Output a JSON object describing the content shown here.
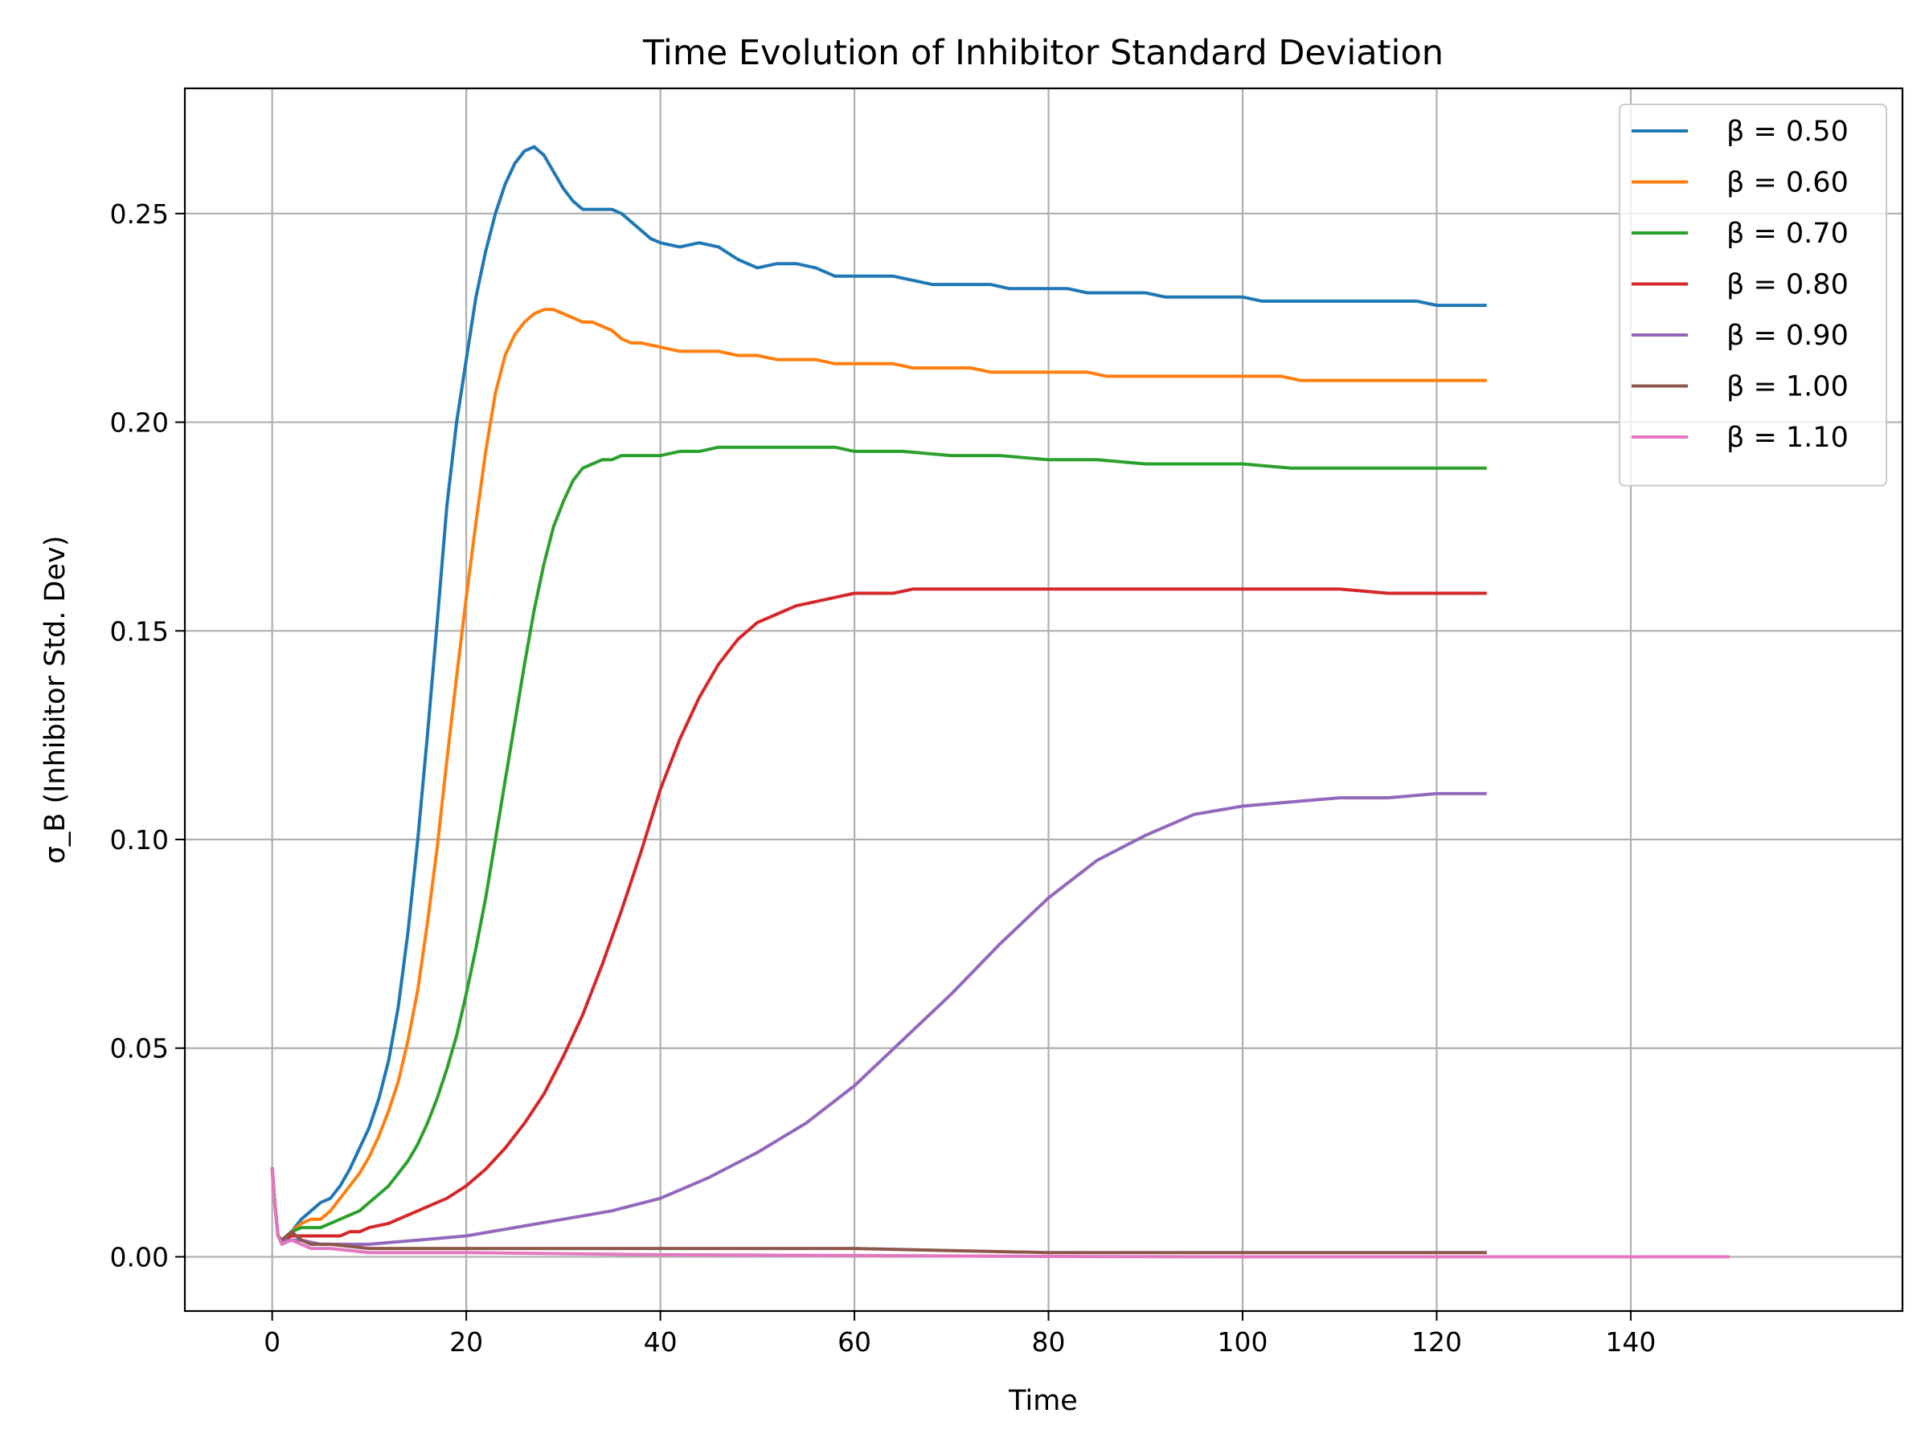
{
  "chart_data": {
    "type": "line",
    "title": "Time Evolution of Inhibitor Standard Deviation",
    "xlabel": "Time",
    "ylabel": "σ_B (Inhibitor Std. Dev)",
    "xlim": [
      -9,
      168
    ],
    "ylim": [
      -0.013,
      0.28
    ],
    "xticks": [
      0,
      20,
      40,
      60,
      80,
      100,
      120,
      140
    ],
    "xtick_labels": [
      "0",
      "20",
      "40",
      "60",
      "80",
      "100",
      "120",
      "140"
    ],
    "yticks": [
      0.0,
      0.05,
      0.1,
      0.15,
      0.2,
      0.25
    ],
    "ytick_labels": [
      "0.00",
      "0.05",
      "0.10",
      "0.15",
      "0.20",
      "0.25"
    ],
    "grid": true,
    "legend_position": "top-right",
    "series": [
      {
        "name": "β = 0.50",
        "color": "#1f77b4",
        "x": [
          0,
          0.3,
          0.6,
          1,
          2,
          3,
          4,
          5,
          6,
          7,
          8,
          9,
          10,
          11,
          12,
          13,
          14,
          15,
          16,
          17,
          18,
          19,
          20,
          21,
          22,
          23,
          24,
          25,
          26,
          27,
          28,
          29,
          30,
          31,
          32,
          33,
          34,
          35,
          36,
          37,
          38,
          39,
          40,
          42,
          44,
          46,
          48,
          50,
          52,
          54,
          56,
          58,
          60,
          62,
          64,
          66,
          68,
          70,
          72,
          74,
          76,
          78,
          80,
          82,
          84,
          86,
          88,
          90,
          92,
          94,
          96,
          98,
          100,
          102,
          104,
          106,
          108,
          110,
          112,
          114,
          116,
          118,
          120,
          122,
          125
        ],
        "y": [
          0.021,
          0.012,
          0.005,
          0.004,
          0.006,
          0.009,
          0.011,
          0.013,
          0.014,
          0.017,
          0.021,
          0.026,
          0.031,
          0.038,
          0.047,
          0.06,
          0.078,
          0.1,
          0.125,
          0.152,
          0.18,
          0.2,
          0.215,
          0.23,
          0.241,
          0.25,
          0.257,
          0.262,
          0.265,
          0.266,
          0.264,
          0.26,
          0.256,
          0.253,
          0.251,
          0.251,
          0.251,
          0.251,
          0.25,
          0.248,
          0.246,
          0.244,
          0.243,
          0.242,
          0.243,
          0.242,
          0.239,
          0.237,
          0.238,
          0.238,
          0.237,
          0.235,
          0.235,
          0.235,
          0.235,
          0.234,
          0.233,
          0.233,
          0.233,
          0.233,
          0.232,
          0.232,
          0.232,
          0.232,
          0.231,
          0.231,
          0.231,
          0.231,
          0.23,
          0.23,
          0.23,
          0.23,
          0.23,
          0.229,
          0.229,
          0.229,
          0.229,
          0.229,
          0.229,
          0.229,
          0.229,
          0.229,
          0.228,
          0.228,
          0.228
        ]
      },
      {
        "name": "β = 0.60",
        "color": "#ff7f0e",
        "x": [
          0,
          0.3,
          0.6,
          1,
          2,
          3,
          4,
          5,
          6,
          7,
          8,
          9,
          10,
          11,
          12,
          13,
          14,
          15,
          16,
          17,
          18,
          19,
          20,
          21,
          22,
          23,
          24,
          25,
          26,
          27,
          28,
          29,
          30,
          31,
          32,
          33,
          34,
          35,
          36,
          37,
          38,
          40,
          42,
          44,
          46,
          48,
          50,
          52,
          54,
          56,
          58,
          60,
          62,
          64,
          66,
          68,
          70,
          72,
          74,
          76,
          78,
          80,
          82,
          84,
          86,
          88,
          90,
          92,
          94,
          96,
          98,
          100,
          102,
          104,
          106,
          108,
          110,
          112,
          114,
          116,
          118,
          120,
          122,
          125
        ],
        "y": [
          0.021,
          0.012,
          0.005,
          0.004,
          0.006,
          0.008,
          0.009,
          0.009,
          0.011,
          0.014,
          0.017,
          0.02,
          0.024,
          0.029,
          0.035,
          0.042,
          0.052,
          0.064,
          0.08,
          0.098,
          0.119,
          0.139,
          0.158,
          0.176,
          0.193,
          0.207,
          0.216,
          0.221,
          0.224,
          0.226,
          0.227,
          0.227,
          0.226,
          0.225,
          0.224,
          0.224,
          0.223,
          0.222,
          0.22,
          0.219,
          0.219,
          0.218,
          0.217,
          0.217,
          0.217,
          0.216,
          0.216,
          0.215,
          0.215,
          0.215,
          0.214,
          0.214,
          0.214,
          0.214,
          0.213,
          0.213,
          0.213,
          0.213,
          0.212,
          0.212,
          0.212,
          0.212,
          0.212,
          0.212,
          0.211,
          0.211,
          0.211,
          0.211,
          0.211,
          0.211,
          0.211,
          0.211,
          0.211,
          0.211,
          0.21,
          0.21,
          0.21,
          0.21,
          0.21,
          0.21,
          0.21,
          0.21,
          0.21,
          0.21
        ]
      },
      {
        "name": "β = 0.70",
        "color": "#2ca02c",
        "x": [
          0,
          0.3,
          0.6,
          1,
          2,
          3,
          4,
          5,
          6,
          7,
          8,
          9,
          10,
          11,
          12,
          13,
          14,
          15,
          16,
          17,
          18,
          19,
          20,
          21,
          22,
          23,
          24,
          25,
          26,
          27,
          28,
          29,
          30,
          31,
          32,
          33,
          34,
          35,
          36,
          37,
          38,
          39,
          40,
          42,
          44,
          46,
          48,
          50,
          52,
          54,
          56,
          58,
          60,
          65,
          70,
          75,
          80,
          85,
          90,
          95,
          100,
          105,
          110,
          115,
          120,
          125
        ],
        "y": [
          0.021,
          0.012,
          0.005,
          0.004,
          0.006,
          0.007,
          0.007,
          0.007,
          0.008,
          0.009,
          0.01,
          0.011,
          0.013,
          0.015,
          0.017,
          0.02,
          0.023,
          0.027,
          0.032,
          0.038,
          0.045,
          0.053,
          0.063,
          0.074,
          0.086,
          0.1,
          0.114,
          0.128,
          0.142,
          0.155,
          0.166,
          0.175,
          0.181,
          0.186,
          0.189,
          0.19,
          0.191,
          0.191,
          0.192,
          0.192,
          0.192,
          0.192,
          0.192,
          0.193,
          0.193,
          0.194,
          0.194,
          0.194,
          0.194,
          0.194,
          0.194,
          0.194,
          0.193,
          0.193,
          0.192,
          0.192,
          0.191,
          0.191,
          0.19,
          0.19,
          0.19,
          0.189,
          0.189,
          0.189,
          0.189,
          0.189
        ]
      },
      {
        "name": "β = 0.80",
        "color": "#d62728",
        "x": [
          0,
          0.3,
          0.6,
          1,
          2,
          3,
          4,
          5,
          6,
          7,
          8,
          9,
          10,
          12,
          14,
          16,
          18,
          20,
          22,
          24,
          26,
          28,
          30,
          32,
          34,
          36,
          38,
          40,
          42,
          44,
          46,
          48,
          50,
          52,
          54,
          56,
          58,
          60,
          62,
          64,
          66,
          68,
          70,
          75,
          80,
          85,
          90,
          95,
          100,
          105,
          110,
          115,
          120,
          125
        ],
        "y": [
          0.021,
          0.012,
          0.005,
          0.004,
          0.005,
          0.005,
          0.005,
          0.005,
          0.005,
          0.005,
          0.006,
          0.006,
          0.007,
          0.008,
          0.01,
          0.012,
          0.014,
          0.017,
          0.021,
          0.026,
          0.032,
          0.039,
          0.048,
          0.058,
          0.07,
          0.083,
          0.097,
          0.112,
          0.124,
          0.134,
          0.142,
          0.148,
          0.152,
          0.154,
          0.156,
          0.157,
          0.158,
          0.159,
          0.159,
          0.159,
          0.16,
          0.16,
          0.16,
          0.16,
          0.16,
          0.16,
          0.16,
          0.16,
          0.16,
          0.16,
          0.16,
          0.159,
          0.159,
          0.159
        ]
      },
      {
        "name": "β = 0.90",
        "color": "#9467bd",
        "x": [
          0,
          0.3,
          0.6,
          1,
          2,
          3,
          5,
          10,
          15,
          20,
          25,
          30,
          35,
          40,
          45,
          50,
          55,
          60,
          65,
          70,
          75,
          80,
          85,
          90,
          95,
          100,
          105,
          110,
          115,
          120,
          125
        ],
        "y": [
          0.021,
          0.012,
          0.005,
          0.004,
          0.004,
          0.004,
          0.003,
          0.003,
          0.004,
          0.005,
          0.007,
          0.009,
          0.011,
          0.014,
          0.019,
          0.025,
          0.032,
          0.041,
          0.052,
          0.063,
          0.075,
          0.086,
          0.095,
          0.101,
          0.106,
          0.108,
          0.109,
          0.11,
          0.11,
          0.111,
          0.111
        ]
      },
      {
        "name": "β = 1.00",
        "color": "#8c564b",
        "x": [
          0,
          0.3,
          0.6,
          1,
          2,
          3,
          4,
          6,
          10,
          20,
          40,
          60,
          80,
          100,
          125
        ],
        "y": [
          0.021,
          0.012,
          0.005,
          0.004,
          0.006,
          0.004,
          0.003,
          0.003,
          0.002,
          0.002,
          0.002,
          0.002,
          0.001,
          0.001,
          0.001
        ]
      },
      {
        "name": "β = 1.10",
        "color": "#e377c2",
        "x": [
          0,
          0.3,
          0.6,
          1,
          2,
          3,
          4,
          6,
          10,
          20,
          40,
          60,
          80,
          100,
          125,
          150
        ],
        "y": [
          0.021,
          0.012,
          0.005,
          0.003,
          0.004,
          0.003,
          0.002,
          0.002,
          0.001,
          0.001,
          0.0005,
          0.0003,
          0.0001,
          0.0,
          0.0,
          0.0
        ]
      }
    ]
  }
}
